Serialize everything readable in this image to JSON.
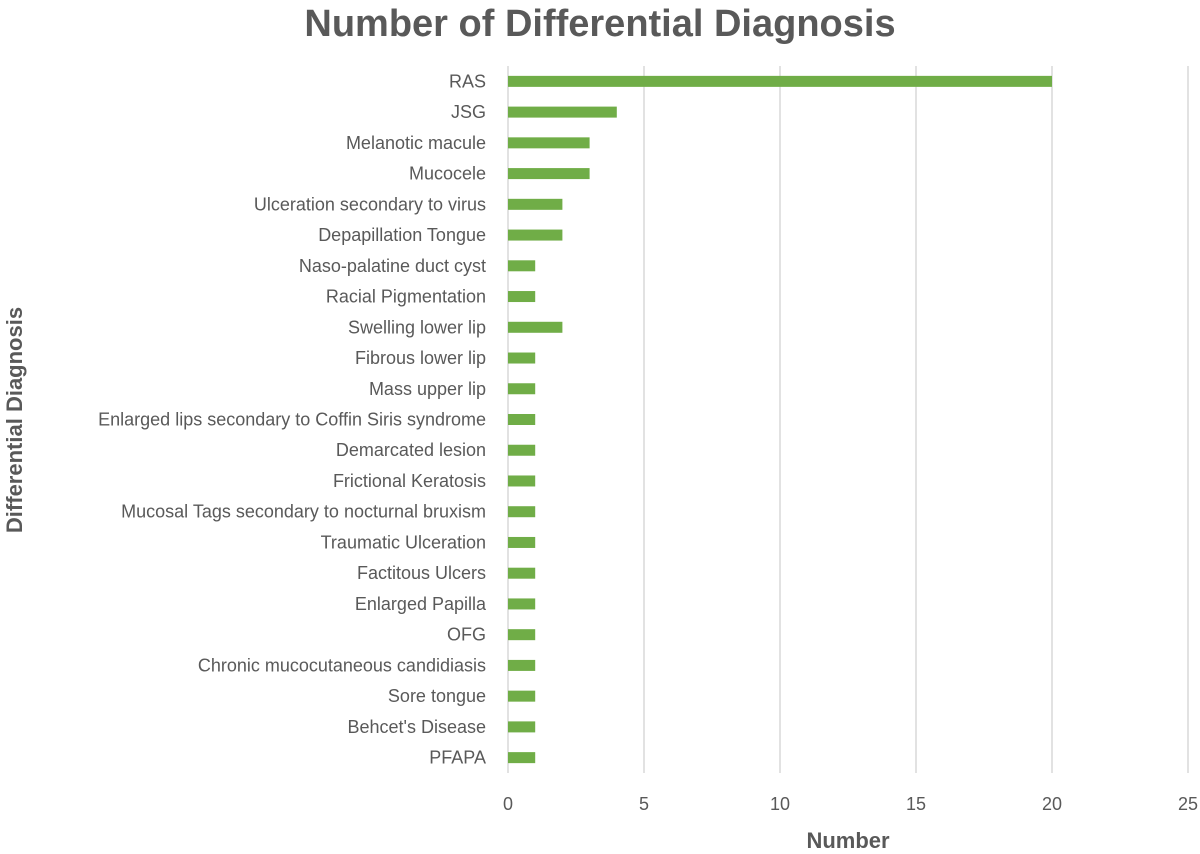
{
  "chart_data": {
    "type": "bar",
    "orientation": "horizontal",
    "title": "Number of Differential Diagnosis",
    "xlabel": "Number",
    "ylabel": "Differential Diagnosis",
    "xlim": [
      0,
      25
    ],
    "x_ticks": [
      0,
      5,
      10,
      15,
      20,
      25
    ],
    "grid": "vertical",
    "legend": "none",
    "bar_color": "#70ad47",
    "categories": [
      "RAS",
      "JSG",
      "Melanotic macule",
      "Mucocele",
      "Ulceration secondary to virus",
      "Depapillation Tongue",
      "Naso-palatine duct cyst",
      "Racial Pigmentation",
      "Swelling lower lip",
      "Fibrous lower lip",
      "Mass upper lip",
      "Enlarged lips secondary to Coffin Siris syndrome",
      "Demarcated lesion",
      "Frictional Keratosis",
      "Mucosal Tags secondary to nocturnal bruxism",
      "Traumatic Ulceration",
      "Factitous Ulcers",
      "Enlarged Papilla",
      "OFG",
      "Chronic mucocutaneous candidiasis",
      "Sore tongue",
      "Behcet's Disease",
      "PFAPA"
    ],
    "values": [
      20,
      4,
      3,
      3,
      2,
      2,
      1,
      1,
      2,
      1,
      1,
      1,
      1,
      1,
      1,
      1,
      1,
      1,
      1,
      1,
      1,
      1,
      1
    ]
  }
}
